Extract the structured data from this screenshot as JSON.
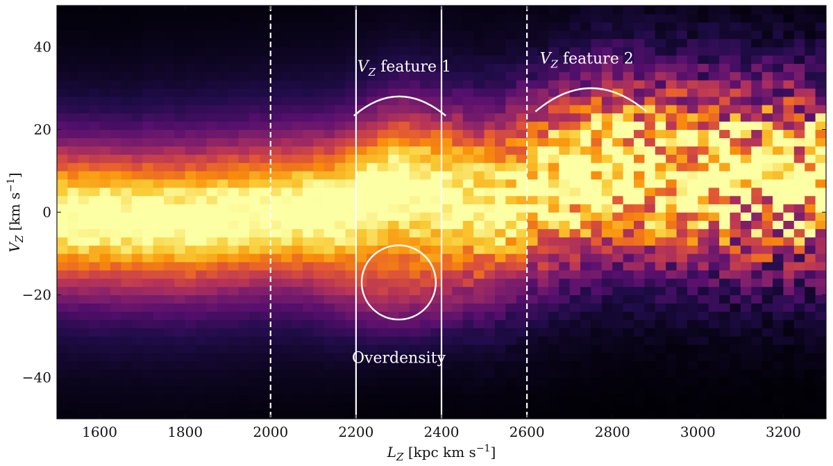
{
  "chart_data": {
    "type": "heatmap",
    "title": "",
    "xlabel": "L_Z [kpc km s^-1]",
    "ylabel": "V_Z [km s^-1]",
    "xlabel_main": "L",
    "xlabel_sub": "Z",
    "xlabel_units": "[kpc km s",
    "ylabel_main": "V",
    "ylabel_sub": "Z",
    "ylabel_units": "[km s",
    "units_exp": "−1",
    "units_close": "]",
    "xlim": [
      1500,
      3300
    ],
    "ylim": [
      -50,
      50
    ],
    "x_ticks": [
      1600,
      1800,
      2000,
      2200,
      2400,
      2600,
      2800,
      3000,
      3200
    ],
    "x_tick_labels": [
      "1600",
      "1800",
      "2000",
      "2200",
      "2400",
      "2600",
      "2800",
      "3000",
      "3200"
    ],
    "y_ticks": [
      -40,
      -20,
      0,
      20,
      40
    ],
    "y_tick_labels": [
      "−40",
      "−20",
      "0",
      "20",
      "40"
    ],
    "colormap": "inferno",
    "bin_width_lz": 25,
    "bin_height_vz": 2,
    "ridge_centerline": [
      {
        "lz": 1500,
        "vz": -1
      },
      {
        "lz": 1800,
        "vz": -2
      },
      {
        "lz": 2000,
        "vz": 0
      },
      {
        "lz": 2150,
        "vz": 1
      },
      {
        "lz": 2300,
        "vz": 7
      },
      {
        "lz": 2500,
        "vz": 2
      },
      {
        "lz": 2600,
        "vz": 5
      },
      {
        "lz": 2800,
        "vz": 11
      },
      {
        "lz": 3000,
        "vz": 9
      },
      {
        "lz": 3300,
        "vz": 8
      }
    ],
    "vertical_lines": [
      {
        "lz": 2000,
        "style": "dashed"
      },
      {
        "lz": 2200,
        "style": "solid"
      },
      {
        "lz": 2400,
        "style": "solid"
      },
      {
        "lz": 2600,
        "style": "dashed"
      }
    ],
    "arcs": [
      {
        "name": "feature-1",
        "lz_center": 2300,
        "lz_from": 2195,
        "lz_to": 2410,
        "vz_top": 28
      },
      {
        "name": "feature-2",
        "lz_center": 2750,
        "lz_from": 2620,
        "lz_to": 2880,
        "vz_top": 30
      }
    ],
    "overdensity_circle": {
      "lz": 2300,
      "vz": -17,
      "radius_lz": 140
    },
    "annotations": {
      "feature1": {
        "main": "V",
        "sub": "Z",
        "text": " feature 1"
      },
      "feature2": {
        "main": "V",
        "sub": "Z",
        "text": " feature 2"
      },
      "overdensity": "Overdensity"
    },
    "colors": {
      "line": "#ffffff",
      "text": "#ffffff",
      "axis": "#111111"
    }
  }
}
